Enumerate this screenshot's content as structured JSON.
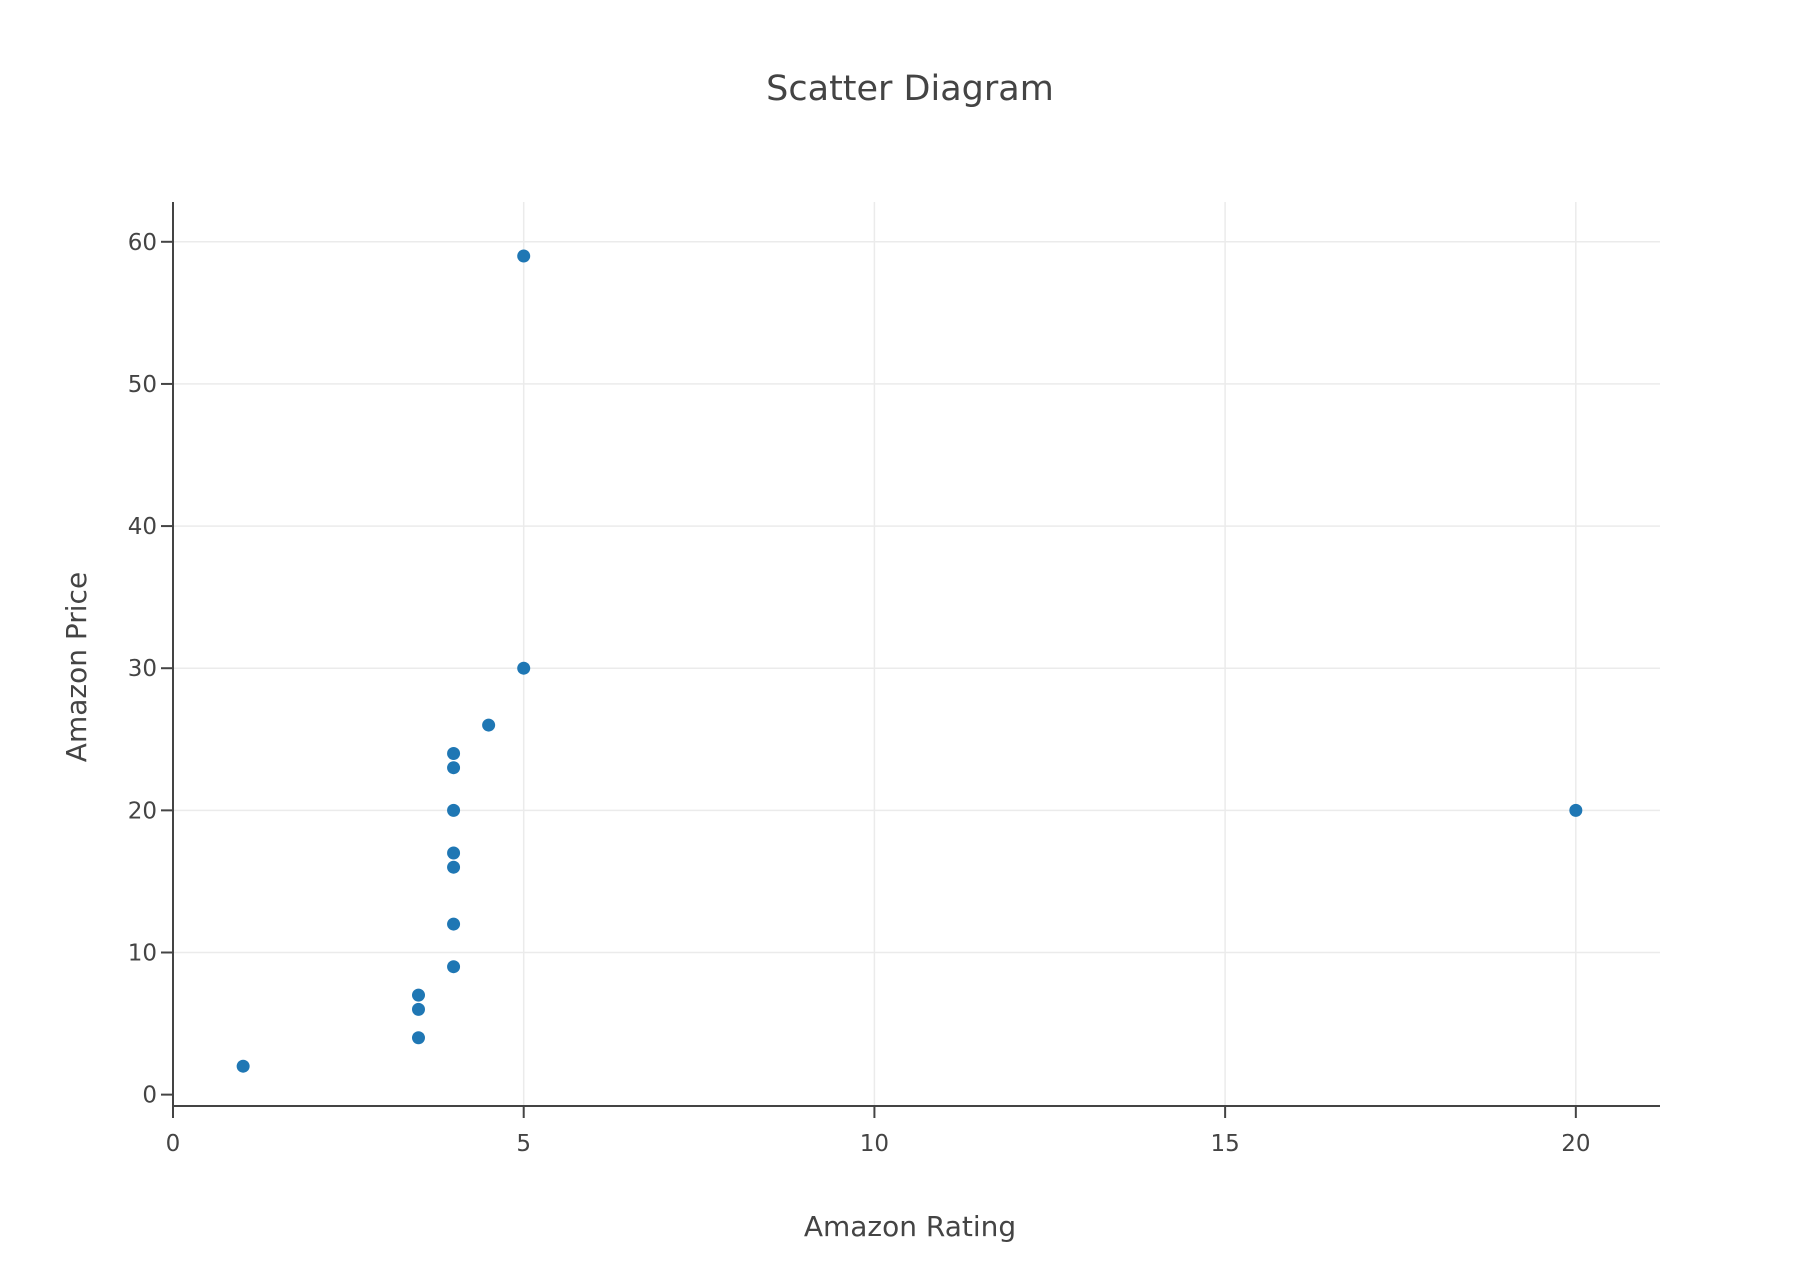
{
  "chart_data": {
    "type": "scatter",
    "title": "Scatter Diagram",
    "xlabel": "Amazon Rating",
    "ylabel": "Amazon Price",
    "xlim": [
      0,
      21.2
    ],
    "ylim": [
      -0.8,
      62.8
    ],
    "xticks": [
      0,
      5,
      10,
      15,
      20
    ],
    "yticks": [
      0,
      10,
      20,
      30,
      40,
      50,
      60
    ],
    "grid": true,
    "marker_color": "#1f77b4",
    "points": [
      {
        "x": 5,
        "y": 59
      },
      {
        "x": 5,
        "y": 30
      },
      {
        "x": 4.5,
        "y": 26
      },
      {
        "x": 4,
        "y": 24
      },
      {
        "x": 4,
        "y": 23
      },
      {
        "x": 4,
        "y": 20
      },
      {
        "x": 4,
        "y": 17
      },
      {
        "x": 4,
        "y": 16
      },
      {
        "x": 4,
        "y": 12
      },
      {
        "x": 4,
        "y": 9
      },
      {
        "x": 3.5,
        "y": 7
      },
      {
        "x": 3.5,
        "y": 6
      },
      {
        "x": 3.5,
        "y": 4
      },
      {
        "x": 1,
        "y": 2
      },
      {
        "x": 20,
        "y": 20
      }
    ]
  }
}
